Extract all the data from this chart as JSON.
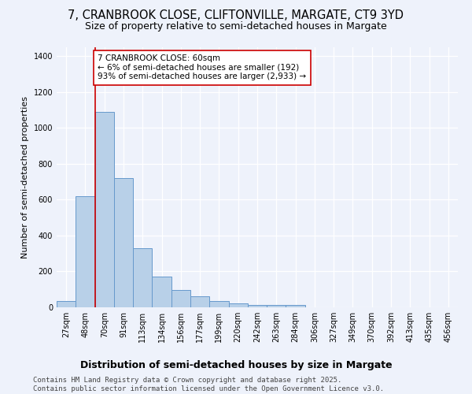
{
  "title": "7, CRANBROOK CLOSE, CLIFTONVILLE, MARGATE, CT9 3YD",
  "subtitle": "Size of property relative to semi-detached houses in Margate",
  "xlabel": "Distribution of semi-detached houses by size in Margate",
  "ylabel": "Number of semi-detached properties",
  "categories": [
    "27sqm",
    "48sqm",
    "70sqm",
    "91sqm",
    "113sqm",
    "134sqm",
    "156sqm",
    "177sqm",
    "199sqm",
    "220sqm",
    "242sqm",
    "263sqm",
    "284sqm",
    "306sqm",
    "327sqm",
    "349sqm",
    "370sqm",
    "392sqm",
    "413sqm",
    "435sqm",
    "456sqm"
  ],
  "values": [
    35,
    620,
    1090,
    720,
    330,
    170,
    95,
    60,
    35,
    20,
    15,
    12,
    12,
    0,
    0,
    0,
    0,
    0,
    0,
    0,
    0
  ],
  "bar_color": "#b8d0e8",
  "bar_edge_color": "#6699cc",
  "red_line_x": 1.5,
  "annotation_text": "7 CRANBROOK CLOSE: 60sqm\n← 6% of semi-detached houses are smaller (192)\n93% of semi-detached houses are larger (2,933) →",
  "annotation_box_color": "#ffffff",
  "red_line_color": "#cc0000",
  "ylim": [
    0,
    1450
  ],
  "background_color": "#eef2fb",
  "footer": "Contains HM Land Registry data © Crown copyright and database right 2025.\nContains public sector information licensed under the Open Government Licence v3.0.",
  "title_fontsize": 10.5,
  "subtitle_fontsize": 9,
  "xlabel_fontsize": 9,
  "ylabel_fontsize": 8,
  "tick_fontsize": 7,
  "footer_fontsize": 6.5,
  "ann_fontsize": 7.5
}
